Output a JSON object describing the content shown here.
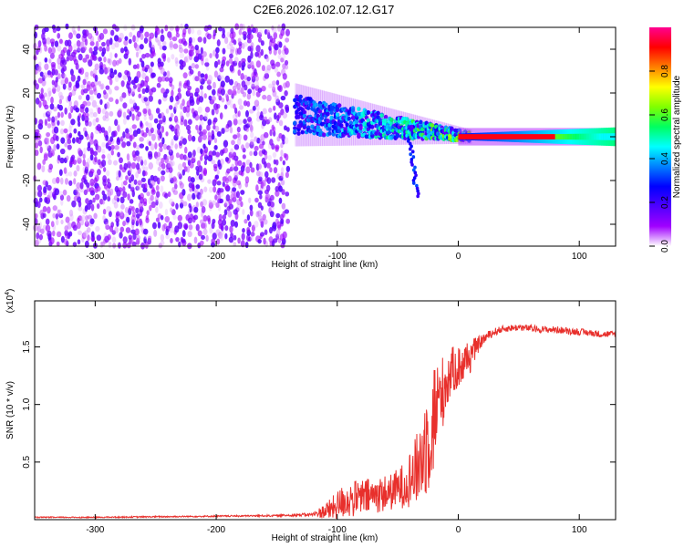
{
  "title": "C2E6.2026.102.07.12.G17",
  "chart_data": [
    {
      "type": "heatmap",
      "name": "spectrogram",
      "xlabel": "Height of straight line (km)",
      "ylabel": "Frequency (Hz)",
      "xlim": [
        -350,
        130
      ],
      "ylim": [
        -50,
        50
      ],
      "xticks": [
        -300,
        -200,
        -100,
        0,
        100
      ],
      "yticks": [
        -40,
        -20,
        0,
        20,
        40
      ],
      "colorbar": {
        "label": "Normalized spectral amplitude",
        "range": [
          0,
          1
        ],
        "ticks": [
          0.0,
          0.2,
          0.4,
          0.6,
          0.8
        ],
        "colors": [
          "#ffffff",
          "#a000ff",
          "#5000ff",
          "#0000ff",
          "#0080ff",
          "#00ffff",
          "#00ff60",
          "#80ff00",
          "#ffff00",
          "#ff8000",
          "#ff0000",
          "#ff0090"
        ]
      },
      "regions": [
        {
          "description": "broadband noise",
          "x_range": [
            -350,
            -140
          ],
          "f_range": [
            -50,
            50
          ],
          "amplitude_range": [
            0.02,
            0.18
          ]
        },
        {
          "description": "spread signal",
          "x_range": [
            -135,
            10
          ],
          "f_center": [
            10,
            0
          ],
          "amplitude_range": [
            0.15,
            0.5
          ]
        },
        {
          "description": "strong carrier",
          "x_range": [
            0,
            130
          ],
          "f_center": 0,
          "amplitude_range": [
            0.3,
            0.95
          ]
        }
      ]
    },
    {
      "type": "line",
      "name": "snr",
      "xlabel": "Height of straight line (km)",
      "ylabel": "SNR (10 * v/v)",
      "scale_note": "(x10",
      "scale_exp": "4",
      "xlim": [
        -350,
        130
      ],
      "ylim": [
        0,
        1.9
      ],
      "xticks": [
        -300,
        -200,
        -100,
        0,
        100
      ],
      "yticks": [
        0.5,
        1.0,
        1.5
      ],
      "ytick_labels": [
        "0.5",
        "1.0",
        "1.5"
      ],
      "series": [
        {
          "name": "SNR",
          "color": "#e8302c",
          "x": [
            -350,
            -300,
            -250,
            -200,
            -150,
            -120,
            -105,
            -95,
            -85,
            -75,
            -65,
            -55,
            -45,
            -40,
            -35,
            -30,
            -25,
            -20,
            -15,
            -10,
            -5,
            0,
            5,
            10,
            15,
            20,
            25,
            30,
            35,
            40,
            50,
            60,
            70,
            80,
            90,
            100,
            110,
            120,
            130
          ],
          "y": [
            0.02,
            0.02,
            0.025,
            0.03,
            0.035,
            0.045,
            0.09,
            0.16,
            0.18,
            0.2,
            0.22,
            0.24,
            0.3,
            0.36,
            0.42,
            0.55,
            0.72,
            0.9,
            1.05,
            1.2,
            1.3,
            1.32,
            1.36,
            1.42,
            1.5,
            1.56,
            1.6,
            1.63,
            1.65,
            1.66,
            1.67,
            1.66,
            1.65,
            1.65,
            1.64,
            1.63,
            1.62,
            1.61,
            1.61
          ],
          "noise": [
            0.005,
            0.005,
            0.006,
            0.006,
            0.008,
            0.015,
            0.1,
            0.15,
            0.16,
            0.16,
            0.16,
            0.16,
            0.2,
            0.25,
            0.3,
            0.42,
            0.5,
            0.5,
            0.35,
            0.28,
            0.2,
            0.2,
            0.18,
            0.15,
            0.08,
            0.05,
            0.04,
            0.035,
            0.03,
            0.03,
            0.03,
            0.03,
            0.03,
            0.03,
            0.03,
            0.03,
            0.03,
            0.03,
            0.03
          ]
        }
      ]
    }
  ]
}
